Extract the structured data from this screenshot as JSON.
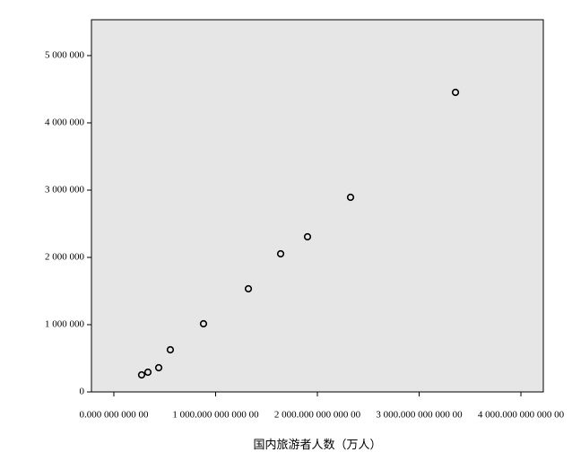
{
  "chart_data": {
    "type": "scatter",
    "x_label": "国内旅游者人数（万人）",
    "x": [
      273,
      335,
      441,
      555,
      881,
      1322,
      1639,
      1903,
      2326,
      3357
    ],
    "values": [
      253000,
      293000,
      360000,
      627000,
      1013000,
      1533000,
      2053000,
      2307000,
      2893000,
      4453000
    ],
    "color": "#000000",
    "background": "#e6e6e6",
    "xlim": [
      -220,
      4220
    ],
    "xticks": [
      {
        "value": 0,
        "label": "0.000 000 000 00"
      },
      {
        "value": 1000,
        "label": "1 000.000 000 000 00"
      },
      {
        "value": 2000,
        "label": "2 000.000 000 000 00"
      },
      {
        "value": 3000,
        "label": "3 000.000 000 000 00"
      },
      {
        "value": 4000,
        "label": "4 000.000 000 000 00"
      }
    ],
    "ylim": [
      0,
      5533000
    ],
    "yticks": [
      0,
      {
        "value": 1000000,
        "label": "1 000 000"
      },
      {
        "value": 2000000,
        "label": "2 000 000"
      },
      {
        "value": 3000000,
        "label": "3 000 000"
      },
      {
        "value": 4000000,
        "label": "4 000 000"
      },
      {
        "value": 5000000,
        "label": "5 000 000"
      }
    ],
    "grid": false
  }
}
